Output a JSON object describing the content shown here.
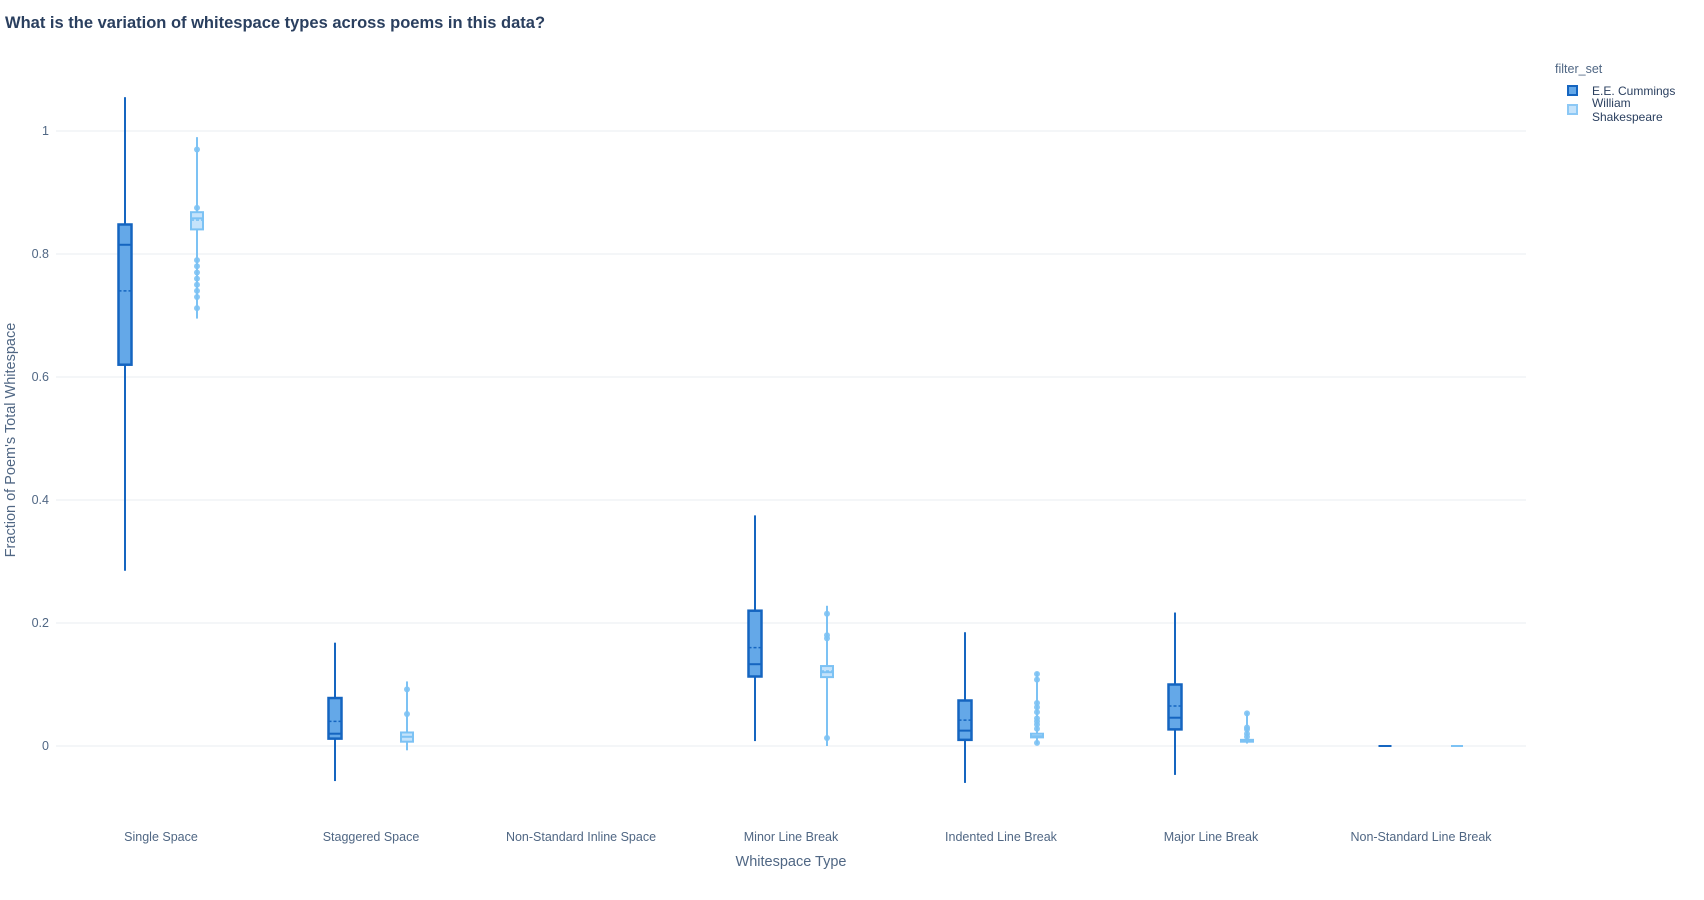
{
  "title": "What is the variation of whitespace types across poems in this data?",
  "legend": {
    "title": "filter_set",
    "items": [
      {
        "label": "E.E. Cummings",
        "stroke": "#1565c0",
        "fill": "#64a8e8"
      },
      {
        "label": "William Shakespeare",
        "stroke": "#8cc8f5",
        "fill": "#c5e3fb"
      }
    ]
  },
  "chart_data": {
    "type": "box",
    "title": "What is the variation of whitespace types across poems in this data?",
    "xlabel": "Whitespace Type",
    "ylabel": "Fraction of Poem's Total Whitespace",
    "ylim": [
      -0.1,
      1.1
    ],
    "yticks": [
      0,
      0.2,
      0.4,
      0.6,
      0.8,
      1
    ],
    "ytick_labels": [
      "0",
      "0.2",
      "0.4",
      "0.6",
      "0.8",
      "1"
    ],
    "categories": [
      "Single Space",
      "Staggered Space",
      "Non-Standard Inline Space",
      "Minor Line Break",
      "Indented Line Break",
      "Major Line Break",
      "Non-Standard Line Break"
    ],
    "grid": true,
    "legend_position": "top-right",
    "series": [
      {
        "name": "E.E. Cummings",
        "color": "#1565c0",
        "fill": "#64a8e8",
        "boxes": [
          {
            "min": 0.285,
            "q1": 0.62,
            "median": 0.815,
            "mean": 0.74,
            "q3": 0.848,
            "max": 1.055,
            "outliers": []
          },
          {
            "min": -0.057,
            "q1": 0.012,
            "median": 0.02,
            "mean": 0.04,
            "q3": 0.078,
            "max": 0.168,
            "outliers": []
          },
          null,
          {
            "min": 0.008,
            "q1": 0.113,
            "median": 0.133,
            "mean": 0.16,
            "q3": 0.22,
            "max": 0.375,
            "outliers": []
          },
          {
            "min": -0.06,
            "q1": 0.01,
            "median": 0.025,
            "mean": 0.042,
            "q3": 0.074,
            "max": 0.185,
            "outliers": []
          },
          {
            "min": -0.047,
            "q1": 0.027,
            "median": 0.046,
            "mean": 0.065,
            "q3": 0.1,
            "max": 0.217,
            "outliers": []
          },
          {
            "min": 0.0,
            "q1": 0.0,
            "median": 0.0,
            "mean": 0.0,
            "q3": 0.0,
            "max": 0.0,
            "outliers": []
          }
        ]
      },
      {
        "name": "William Shakespeare",
        "color": "#7cc2f4",
        "fill": "#c5e3fb",
        "boxes": [
          {
            "min": 0.695,
            "q1": 0.84,
            "median": 0.858,
            "mean": 0.855,
            "q3": 0.868,
            "max": 0.99,
            "outliers": [
              0.97,
              0.875,
              0.79,
              0.78,
              0.77,
              0.76,
              0.75,
              0.74,
              0.73,
              0.712
            ]
          },
          {
            "min": -0.007,
            "q1": 0.007,
            "median": 0.015,
            "mean": 0.015,
            "q3": 0.022,
            "max": 0.105,
            "outliers": [
              0.092,
              0.052
            ]
          },
          null,
          {
            "min": 0.0,
            "q1": 0.112,
            "median": 0.12,
            "mean": 0.122,
            "q3": 0.13,
            "max": 0.228,
            "outliers": [
              0.215,
              0.18,
              0.175,
              0.013
            ]
          },
          {
            "min": 0.003,
            "q1": 0.014,
            "median": 0.016,
            "mean": 0.02,
            "q3": 0.02,
            "max": 0.12,
            "outliers": [
              0.117,
              0.108,
              0.07,
              0.063,
              0.055,
              0.045,
              0.04,
              0.035,
              0.028,
              0.005
            ]
          },
          {
            "min": 0.004,
            "q1": 0.007,
            "median": 0.008,
            "mean": 0.009,
            "q3": 0.01,
            "max": 0.055,
            "outliers": [
              0.053,
              0.03,
              0.027,
              0.02,
              0.015
            ]
          },
          {
            "min": 0.0,
            "q1": 0.0,
            "median": 0.0,
            "mean": 0.0,
            "q3": 0.0,
            "max": 0.0,
            "outliers": []
          }
        ]
      }
    ]
  }
}
